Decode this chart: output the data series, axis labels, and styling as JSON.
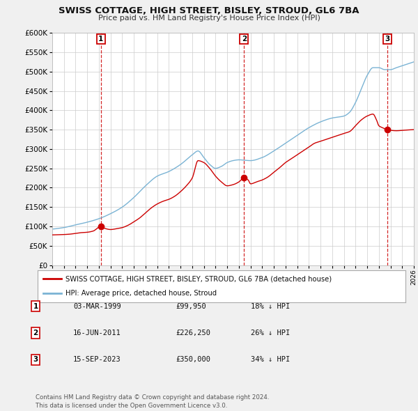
{
  "title": "SWISS COTTAGE, HIGH STREET, BISLEY, STROUD, GL6 7BA",
  "subtitle": "Price paid vs. HM Land Registry's House Price Index (HPI)",
  "ytick_values": [
    0,
    50000,
    100000,
    150000,
    200000,
    250000,
    300000,
    350000,
    400000,
    450000,
    500000,
    550000,
    600000
  ],
  "xmin": 1995,
  "xmax": 2026,
  "ymin": 0,
  "ymax": 600000,
  "hpi_color": "#7ab3d4",
  "price_color": "#cc0000",
  "vline_color": "#cc0000",
  "sale_marker_color": "#cc0000",
  "sale_marker_size": 7,
  "legend_label_price": "SWISS COTTAGE, HIGH STREET, BISLEY, STROUD, GL6 7BA (detached house)",
  "legend_label_hpi": "HPI: Average price, detached house, Stroud",
  "transactions": [
    {
      "label": "1",
      "date": "03-MAR-1999",
      "price": 99950,
      "pct": "18%",
      "direction": "↓",
      "year": 1999.17
    },
    {
      "label": "2",
      "date": "16-JUN-2011",
      "price": 226250,
      "pct": "26%",
      "direction": "↓",
      "year": 2011.45
    },
    {
      "label": "3",
      "date": "15-SEP-2023",
      "price": 350000,
      "pct": "34%",
      "direction": "↓",
      "year": 2023.71
    }
  ],
  "footer": "Contains HM Land Registry data © Crown copyright and database right 2024.\nThis data is licensed under the Open Government Licence v3.0.",
  "background_color": "#f0f0f0",
  "plot_bg_color": "#ffffff",
  "grid_color": "#cccccc",
  "hpi_waypoints": [
    [
      1995.0,
      93000
    ],
    [
      1996.0,
      97000
    ],
    [
      1997.0,
      104000
    ],
    [
      1998.0,
      111000
    ],
    [
      1999.0,
      120000
    ],
    [
      2000.0,
      133000
    ],
    [
      2001.0,
      150000
    ],
    [
      2002.0,
      175000
    ],
    [
      2003.0,
      205000
    ],
    [
      2004.0,
      230000
    ],
    [
      2005.0,
      242000
    ],
    [
      2006.0,
      260000
    ],
    [
      2007.0,
      285000
    ],
    [
      2007.5,
      295000
    ],
    [
      2008.0,
      278000
    ],
    [
      2008.5,
      260000
    ],
    [
      2009.0,
      250000
    ],
    [
      2009.5,
      255000
    ],
    [
      2010.0,
      265000
    ],
    [
      2010.5,
      270000
    ],
    [
      2011.0,
      272000
    ],
    [
      2012.0,
      270000
    ],
    [
      2013.0,
      278000
    ],
    [
      2014.0,
      295000
    ],
    [
      2015.0,
      315000
    ],
    [
      2016.0,
      335000
    ],
    [
      2017.0,
      355000
    ],
    [
      2018.0,
      370000
    ],
    [
      2019.0,
      380000
    ],
    [
      2020.0,
      385000
    ],
    [
      2020.5,
      395000
    ],
    [
      2021.0,
      420000
    ],
    [
      2021.5,
      455000
    ],
    [
      2022.0,
      490000
    ],
    [
      2022.5,
      510000
    ],
    [
      2023.0,
      510000
    ],
    [
      2023.5,
      505000
    ],
    [
      2024.0,
      505000
    ],
    [
      2024.5,
      510000
    ],
    [
      2025.0,
      515000
    ],
    [
      2025.5,
      520000
    ],
    [
      2026.0,
      525000
    ]
  ],
  "price_waypoints": [
    [
      1995.0,
      78000
    ],
    [
      1995.5,
      78500
    ],
    [
      1996.0,
      79000
    ],
    [
      1996.5,
      80000
    ],
    [
      1997.0,
      82000
    ],
    [
      1997.5,
      84000
    ],
    [
      1998.0,
      85000
    ],
    [
      1998.5,
      88000
    ],
    [
      1999.17,
      99950
    ],
    [
      1999.5,
      95000
    ],
    [
      2000.0,
      92000
    ],
    [
      2000.5,
      94000
    ],
    [
      2001.0,
      97000
    ],
    [
      2001.5,
      103000
    ],
    [
      2002.0,
      112000
    ],
    [
      2002.5,
      122000
    ],
    [
      2003.0,
      135000
    ],
    [
      2003.5,
      148000
    ],
    [
      2004.0,
      158000
    ],
    [
      2004.5,
      165000
    ],
    [
      2005.0,
      170000
    ],
    [
      2005.5,
      178000
    ],
    [
      2006.0,
      190000
    ],
    [
      2006.5,
      205000
    ],
    [
      2007.0,
      225000
    ],
    [
      2007.5,
      270000
    ],
    [
      2008.0,
      265000
    ],
    [
      2008.5,
      250000
    ],
    [
      2009.0,
      230000
    ],
    [
      2009.5,
      215000
    ],
    [
      2010.0,
      205000
    ],
    [
      2010.5,
      208000
    ],
    [
      2011.0,
      215000
    ],
    [
      2011.45,
      226250
    ],
    [
      2011.8,
      220000
    ],
    [
      2012.0,
      210000
    ],
    [
      2012.5,
      215000
    ],
    [
      2013.0,
      220000
    ],
    [
      2013.5,
      228000
    ],
    [
      2014.0,
      240000
    ],
    [
      2014.5,
      252000
    ],
    [
      2015.0,
      265000
    ],
    [
      2015.5,
      275000
    ],
    [
      2016.0,
      285000
    ],
    [
      2016.5,
      295000
    ],
    [
      2017.0,
      305000
    ],
    [
      2017.5,
      315000
    ],
    [
      2018.0,
      320000
    ],
    [
      2018.5,
      325000
    ],
    [
      2019.0,
      330000
    ],
    [
      2019.5,
      335000
    ],
    [
      2020.0,
      340000
    ],
    [
      2020.5,
      345000
    ],
    [
      2021.0,
      360000
    ],
    [
      2021.5,
      375000
    ],
    [
      2022.0,
      385000
    ],
    [
      2022.5,
      390000
    ],
    [
      2022.8,
      375000
    ],
    [
      2023.0,
      360000
    ],
    [
      2023.3,
      355000
    ],
    [
      2023.71,
      350000
    ],
    [
      2024.0,
      348000
    ],
    [
      2024.5,
      347000
    ],
    [
      2025.0,
      348000
    ],
    [
      2025.5,
      349000
    ],
    [
      2026.0,
      350000
    ]
  ]
}
